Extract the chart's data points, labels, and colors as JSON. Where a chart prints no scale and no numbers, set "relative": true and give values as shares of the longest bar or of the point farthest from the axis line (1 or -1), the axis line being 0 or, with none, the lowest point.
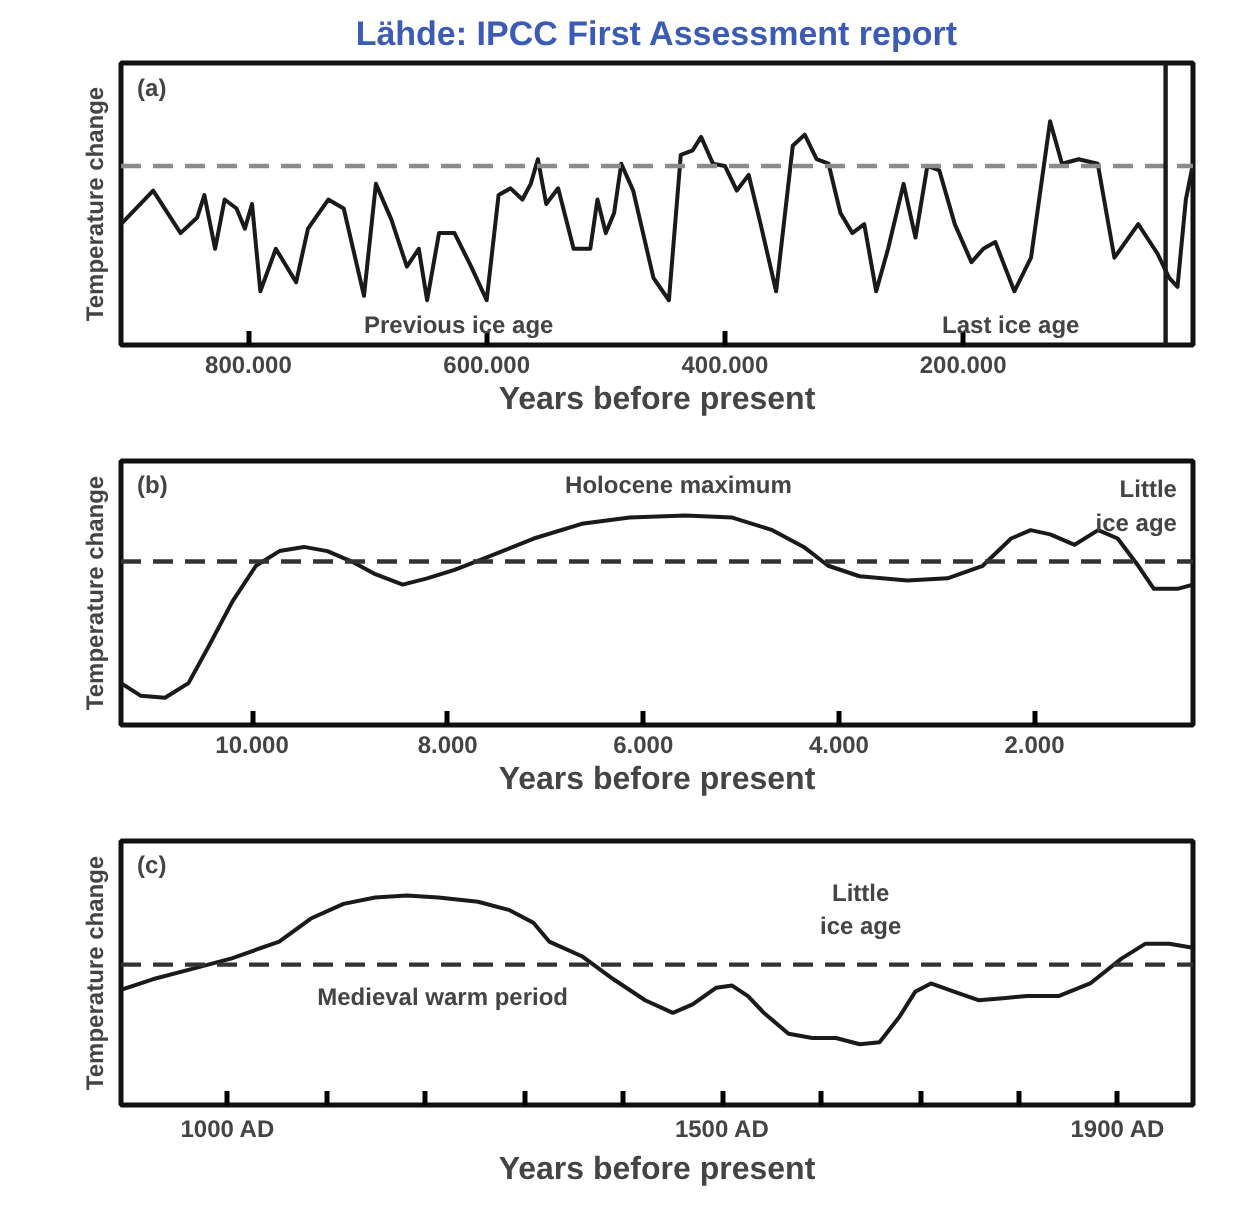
{
  "chart_data": [
    {
      "type": "line",
      "title": "Lähde: IPCC First Assessment report",
      "xlabel": "Years before present",
      "ylabel": "Temperature change",
      "relative": true,
      "xlim": [
        907000,
        7000
      ],
      "xticks": [
        {
          "value": 800000,
          "label": "800.000"
        },
        {
          "value": 600000,
          "label": "600.000"
        },
        {
          "value": 400000,
          "label": "400.000"
        },
        {
          "value": 200000,
          "label": "200.000"
        }
      ],
      "series": [
        {
          "color": "#1a1a1a",
          "x": [
            907000,
            880000,
            857000,
            843000,
            837000,
            828000,
            820000,
            810000,
            803000,
            797000,
            790000,
            777000,
            760000,
            750000,
            733000,
            720000,
            703000,
            693000,
            680000,
            667000,
            657000,
            650000,
            640000,
            627000,
            613000,
            600000,
            590000,
            580000,
            570000,
            563000,
            557000,
            550000,
            540000,
            527000,
            513000,
            507000,
            500000,
            493000,
            487000,
            477000,
            460000,
            447000,
            437000,
            427000,
            420000,
            410000,
            400000,
            390000,
            380000,
            370000,
            357000,
            343000,
            333000,
            323000,
            313000,
            303000,
            293000,
            283000,
            273000,
            263000,
            250000,
            240000,
            230000,
            220000,
            207000,
            193000,
            183000,
            173000,
            157000,
            143000,
            127000,
            117000,
            103000,
            87000,
            73000,
            53000,
            37000,
            27000,
            20000,
            13000,
            7000
          ],
          "values": [
            0.54,
            0.69,
            0.5,
            0.57,
            0.67,
            0.43,
            0.65,
            0.61,
            0.52,
            0.63,
            0.24,
            0.43,
            0.28,
            0.52,
            0.65,
            0.61,
            0.22,
            0.72,
            0.56,
            0.35,
            0.43,
            0.2,
            0.5,
            0.5,
            0.35,
            0.2,
            0.67,
            0.7,
            0.65,
            0.72,
            0.83,
            0.63,
            0.7,
            0.43,
            0.43,
            0.65,
            0.5,
            0.59,
            0.81,
            0.69,
            0.3,
            0.2,
            0.85,
            0.87,
            0.93,
            0.81,
            0.8,
            0.69,
            0.76,
            0.54,
            0.24,
            0.89,
            0.94,
            0.83,
            0.81,
            0.59,
            0.5,
            0.54,
            0.24,
            0.43,
            0.72,
            0.48,
            0.8,
            0.78,
            0.54,
            0.37,
            0.43,
            0.46,
            0.24,
            0.39,
            1,
            0.81,
            0.83,
            0.81,
            0.39,
            0.54,
            0.41,
            0.3,
            0.26,
            0.65,
            0.81
          ]
        }
      ],
      "ref_lines": [
        {
          "axis": "y",
          "value": 0.8,
          "color": "#8a8a8a",
          "line_style": "dashed"
        },
        {
          "axis": "x",
          "value": 30000,
          "color": "#1a1a1a",
          "line_style": "solid"
        }
      ],
      "annotations": [
        "(a)",
        "Previous ice age",
        "Last ice age"
      ]
    },
    {
      "type": "line",
      "xlabel": "Years before present",
      "ylabel": "Temperature change",
      "relative": true,
      "xlim": [
        11340,
        380
      ],
      "xticks": [
        {
          "value": 10000,
          "label": "10.000"
        },
        {
          "value": 8000,
          "label": "8.000"
        },
        {
          "value": 6000,
          "label": "6.000"
        },
        {
          "value": 4000,
          "label": "4.000"
        },
        {
          "value": 2000,
          "label": "2.000"
        }
      ],
      "series": [
        {
          "color": "#1a1a1a",
          "x": [
            11340,
            11140,
            10890,
            10650,
            10450,
            10200,
            9960,
            9720,
            9470,
            9230,
            8980,
            8740,
            8460,
            8210,
            7930,
            7600,
            7120,
            6630,
            6140,
            5570,
            5090,
            4680,
            4360,
            4110,
            3790,
            3300,
            2890,
            2530,
            2240,
            2040,
            1840,
            1590,
            1350,
            1150,
            940,
            780,
            660,
            540,
            380
          ],
          "values": [
            0.2,
            0.14,
            0.13,
            0.2,
            0.37,
            0.59,
            0.76,
            0.83,
            0.85,
            0.83,
            0.78,
            0.72,
            0.67,
            0.7,
            0.74,
            0.8,
            0.89,
            0.96,
            0.99,
            1,
            0.99,
            0.93,
            0.85,
            0.76,
            0.71,
            0.69,
            0.7,
            0.76,
            0.89,
            0.93,
            0.91,
            0.86,
            0.93,
            0.89,
            0.76,
            0.65,
            0.65,
            0.65,
            0.67
          ]
        }
      ],
      "ref_lines": [
        {
          "axis": "y",
          "value": 0.78,
          "color": "#333333",
          "line_style": "dashed"
        }
      ],
      "annotations": [
        "(b)",
        "Holocene maximum",
        "Little\nice age"
      ]
    },
    {
      "type": "line",
      "xlabel": "Years before present",
      "ylabel": "Temperature change",
      "relative": true,
      "xlim": [
        892,
        1976
      ],
      "xticks": [
        {
          "value": 1000,
          "label": "1000 AD"
        },
        {
          "value": 1100,
          "label": null
        },
        {
          "value": 1200,
          "label": null
        },
        {
          "value": 1300,
          "label": null
        },
        {
          "value": 1400,
          "label": null
        },
        {
          "value": 1500,
          "label": "1500 AD"
        },
        {
          "value": 1600,
          "label": null
        },
        {
          "value": 1700,
          "label": null
        },
        {
          "value": 1800,
          "label": null
        },
        {
          "value": 1900,
          "label": "1900 AD"
        }
      ],
      "series": [
        {
          "color": "#1a1a1a",
          "x": [
            892,
            924,
            964,
            1004,
            1052,
            1084,
            1117,
            1149,
            1181,
            1213,
            1253,
            1285,
            1309,
            1325,
            1358,
            1390,
            1422,
            1450,
            1470,
            1494,
            1510,
            1526,
            1542,
            1567,
            1591,
            1615,
            1639,
            1659,
            1679,
            1695,
            1711,
            1735,
            1759,
            1784,
            1808,
            1840,
            1872,
            1904,
            1928,
            1952,
            1976
          ],
          "values": [
            0.55,
            0.6,
            0.65,
            0.7,
            0.78,
            0.89,
            0.96,
            0.99,
            1,
            0.99,
            0.97,
            0.93,
            0.87,
            0.78,
            0.71,
            0.6,
            0.5,
            0.44,
            0.48,
            0.56,
            0.57,
            0.52,
            0.44,
            0.34,
            0.32,
            0.32,
            0.29,
            0.3,
            0.42,
            0.54,
            0.58,
            0.54,
            0.5,
            0.51,
            0.52,
            0.52,
            0.58,
            0.7,
            0.77,
            0.77,
            0.75
          ]
        }
      ],
      "ref_lines": [
        {
          "axis": "y",
          "value": 0.67,
          "color": "#333333",
          "line_style": "dashed"
        }
      ],
      "annotations": [
        "(c)",
        "Medieval warm period",
        "Little\nice age"
      ]
    }
  ]
}
